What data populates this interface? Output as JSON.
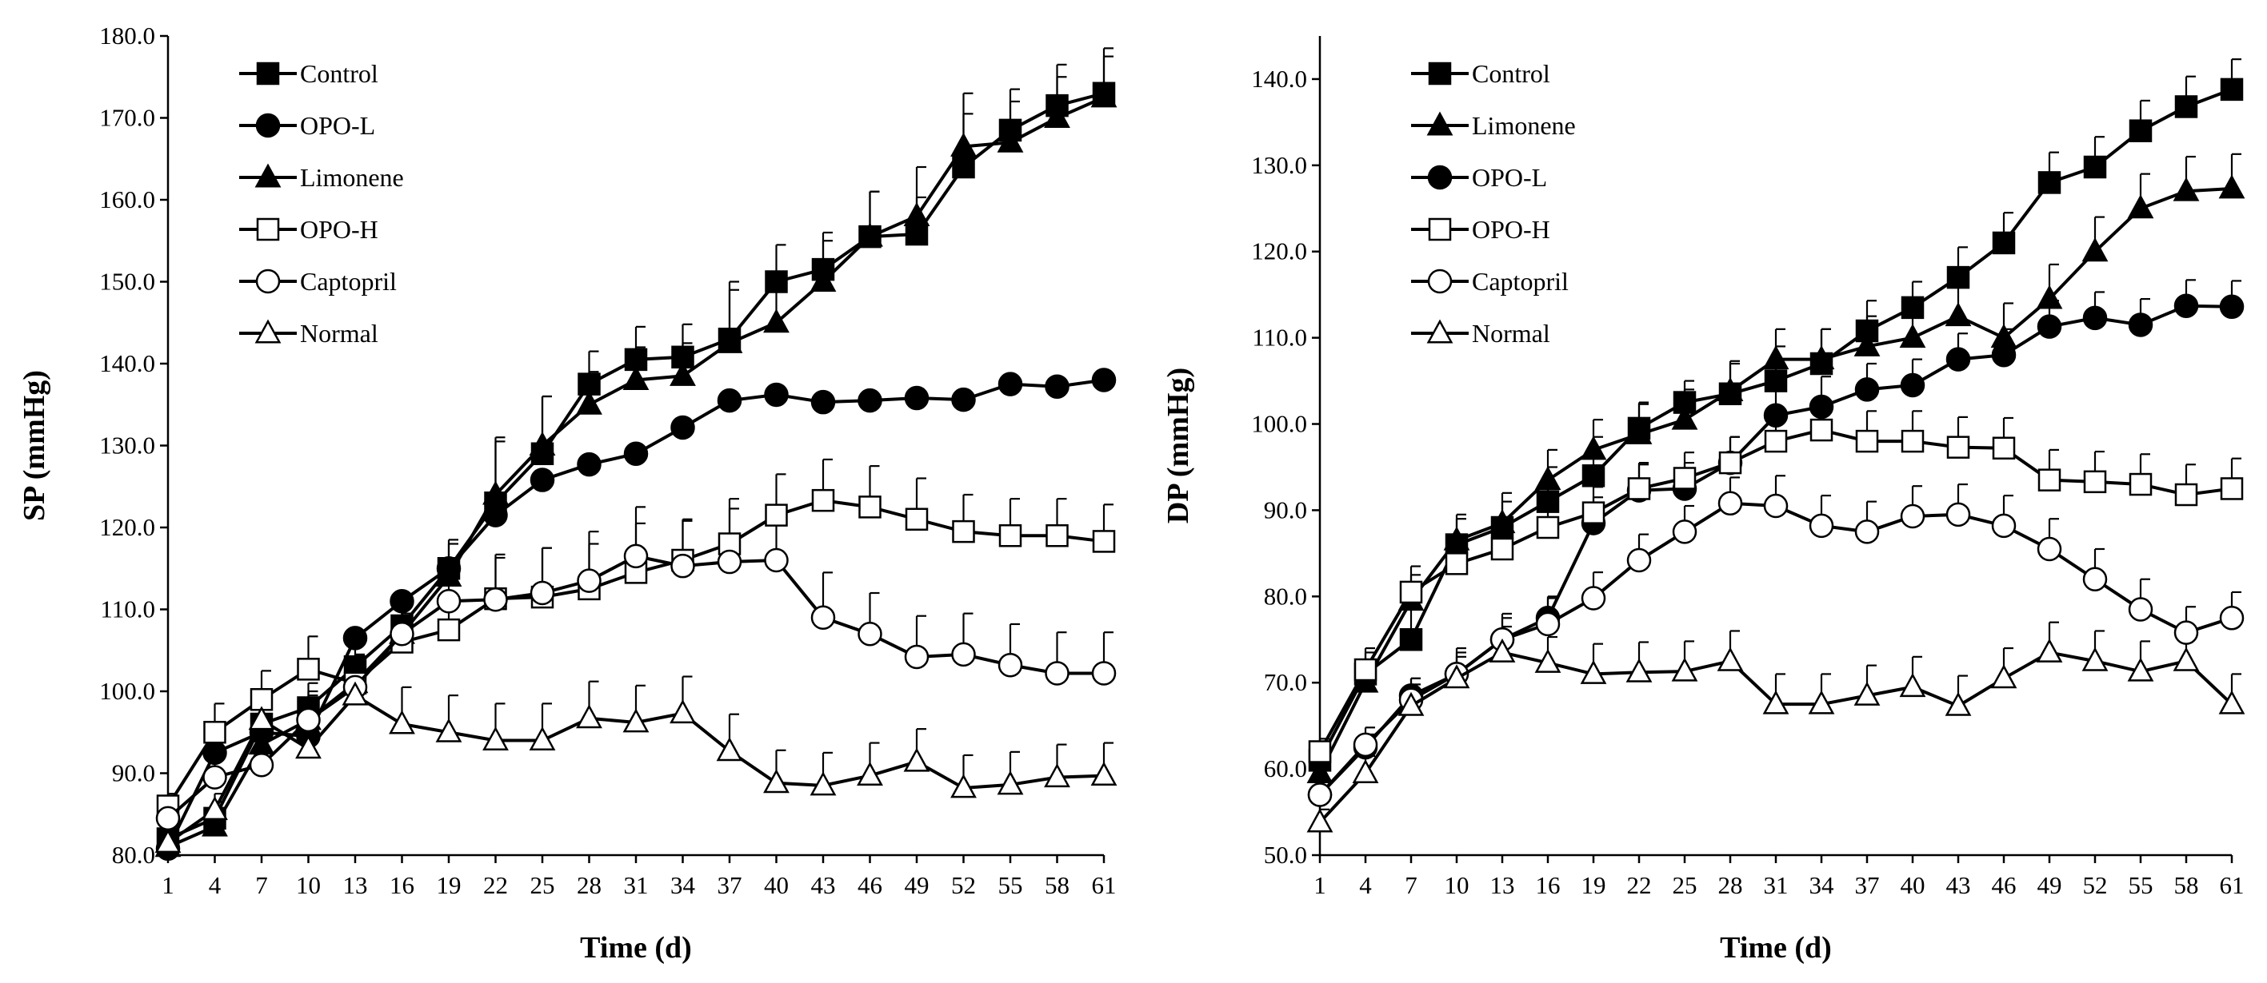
{
  "chart_data": [
    {
      "type": "line",
      "title": "",
      "xlabel": "Time (d)",
      "ylabel": "SP (mmHg)",
      "ylim": [
        80,
        180
      ],
      "yticks": [
        "80.0",
        "90.0",
        "100.0",
        "110.0",
        "120.0",
        "130.0",
        "140.0",
        "150.0",
        "160.0",
        "170.0",
        "180.0"
      ],
      "x": [
        1,
        4,
        7,
        10,
        13,
        16,
        19,
        22,
        25,
        28,
        31,
        34,
        37,
        40,
        43,
        46,
        49,
        52,
        55,
        58,
        61
      ],
      "grid": false,
      "legend_position": "top-left",
      "series": [
        {
          "name": "Control",
          "marker": "square-filled",
          "values": [
            82,
            84.5,
            96,
            98,
            103,
            108,
            115,
            123,
            129,
            137.5,
            140.5,
            140.8,
            143,
            150,
            151.5,
            155.5,
            155.8,
            164,
            168.5,
            171.5,
            173
          ],
          "errors": [
            1.5,
            2,
            4,
            3,
            3.5,
            3.5,
            3.5,
            8,
            7,
            4,
            4,
            4,
            7,
            4.5,
            4.5,
            5.5,
            4.5,
            6.5,
            5,
            5,
            5.5
          ]
        },
        {
          "name": "OPO-L",
          "marker": "circle-filled",
          "values": [
            80.8,
            92.5,
            95,
            94.5,
            106.5,
            111,
            115,
            121.5,
            125.8,
            127.7,
            129,
            132.2,
            135.5,
            136.2,
            135.3,
            135.5,
            135.8,
            135.6,
            137.5,
            137.2,
            138
          ]
        },
        {
          "name": "Limonene",
          "marker": "triangle-filled",
          "values": [
            81,
            83.5,
            93.5,
            96.5,
            101,
            107,
            114,
            124,
            130,
            135,
            138,
            138.5,
            142.5,
            145,
            150,
            155.5,
            158,
            166.5,
            167,
            170,
            172.5
          ],
          "errors": [
            1,
            1.5,
            3,
            3.5,
            3,
            4,
            4,
            6.5,
            6,
            4,
            4,
            4,
            6.5,
            5,
            5,
            5.5,
            6,
            6.5,
            5,
            5,
            5
          ]
        },
        {
          "name": "OPO-H",
          "marker": "square-open",
          "values": [
            86,
            95,
            99,
            102.7,
            101,
            106,
            107.5,
            111.3,
            111.5,
            112.5,
            114.5,
            116,
            118,
            121.5,
            123.3,
            122.5,
            121,
            119.5,
            119,
            119,
            118.3
          ],
          "errors": [
            1.5,
            3.5,
            3.5,
            4,
            3.5,
            3.5,
            4,
            5,
            6,
            5.5,
            6,
            5,
            5.5,
            5,
            5,
            5,
            5,
            4.5,
            4.5,
            4.5,
            4.5
          ]
        },
        {
          "name": "Captopril",
          "marker": "circle-open",
          "values": [
            84.5,
            89.5,
            91,
            96.5,
            100.5,
            107,
            111,
            111.2,
            112,
            113.5,
            116.5,
            115.3,
            115.8,
            116,
            109,
            107,
            104.2,
            104.5,
            103.2,
            102.2,
            102.2
          ],
          "errors": [
            1.5,
            2.5,
            4,
            3,
            3,
            3.5,
            4,
            5.5,
            5.5,
            6,
            6,
            5.5,
            6.5,
            6.5,
            5.5,
            5,
            5,
            5,
            5,
            5,
            5
          ]
        },
        {
          "name": "Normal",
          "marker": "triangle-open",
          "values": [
            81.5,
            85.5,
            96.5,
            93,
            99.5,
            96,
            95,
            94,
            94,
            96.7,
            96.2,
            97.3,
            92.7,
            88.8,
            88.5,
            89.7,
            91.4,
            88.2,
            88.6,
            89.5,
            89.7
          ],
          "errors": [
            1.5,
            2,
            3.5,
            3.5,
            3.5,
            4.5,
            4.5,
            4.5,
            4.5,
            4.5,
            4.5,
            4.5,
            4.5,
            4,
            4,
            4,
            4,
            4,
            4,
            4,
            4
          ]
        }
      ]
    },
    {
      "type": "line",
      "title": "",
      "xlabel": "Time (d)",
      "ylabel": "DP (mmHg)",
      "ylim": [
        50,
        145
      ],
      "yticks": [
        "50.0",
        "60.0",
        "70.0",
        "80.0",
        "90.0",
        "100.0",
        "110.0",
        "120.0",
        "130.0",
        "140.0"
      ],
      "x": [
        1,
        4,
        7,
        10,
        13,
        16,
        19,
        22,
        25,
        28,
        31,
        34,
        37,
        40,
        43,
        46,
        49,
        52,
        55,
        58,
        61
      ],
      "grid": false,
      "legend_position": "top-left",
      "series": [
        {
          "name": "Control",
          "marker": "square-filled",
          "values": [
            61,
            71,
            75,
            86,
            88,
            91,
            94,
            99.5,
            102.5,
            103.5,
            105,
            107,
            110.8,
            113.5,
            117,
            121,
            128,
            129.8,
            134,
            136.8,
            138.8
          ],
          "errors": [
            1.5,
            2.5,
            3.5,
            3,
            3,
            4,
            4.5,
            3,
            2.5,
            3.5,
            4,
            4,
            3.5,
            3,
            3.5,
            3.5,
            3.5,
            3.5,
            3.5,
            3.5,
            3.5
          ]
        },
        {
          "name": "Limonene",
          "marker": "triangle-filled",
          "values": [
            59.5,
            70,
            79.5,
            86.5,
            88.5,
            93.5,
            97,
            98.8,
            100.5,
            103.8,
            107.5,
            107.5,
            109,
            110,
            112.5,
            110,
            114.5,
            120,
            125,
            127,
            127.3
          ],
          "errors": [
            1.5,
            2.5,
            3,
            3,
            3.5,
            3.5,
            3.5,
            3.5,
            3.5,
            3.5,
            3.5,
            3.5,
            3.5,
            3.5,
            3.5,
            4,
            4,
            4,
            4,
            4,
            4
          ]
        },
        {
          "name": "OPO-L",
          "marker": "circle-filled",
          "values": [
            57,
            62.5,
            68.5,
            71,
            75,
            77.5,
            88.5,
            92.3,
            92.5,
            95.5,
            101,
            102,
            104,
            104.5,
            107.5,
            108,
            111.3,
            112.3,
            111.5,
            113.7,
            113.6
          ],
          "errors": [
            1,
            1.5,
            2,
            2,
            2.5,
            2.5,
            3,
            3,
            3,
            3,
            3.5,
            3.5,
            3,
            3,
            3,
            3,
            3,
            3,
            3,
            3,
            3
          ]
        },
        {
          "name": "OPO-H",
          "marker": "square-open",
          "values": [
            62,
            71.5,
            80.5,
            83.8,
            85.5,
            88,
            89.7,
            92.5,
            93.7,
            95.5,
            98,
            99.3,
            98,
            98,
            97.3,
            97.2,
            93.5,
            93.3,
            93,
            91.8,
            92.5
          ],
          "errors": [
            1.5,
            2.5,
            3,
            3,
            3,
            3,
            3,
            3,
            3,
            3,
            3,
            3,
            3.5,
            3.5,
            3.5,
            3.5,
            3.5,
            3.5,
            3.5,
            3.5,
            3.5
          ]
        },
        {
          "name": "Captopril",
          "marker": "circle-open",
          "values": [
            57,
            62.8,
            68,
            71,
            75,
            76.8,
            79.8,
            84.2,
            87.5,
            90.8,
            90.5,
            88.2,
            87.5,
            89.3,
            89.5,
            88.2,
            85.5,
            82,
            78.5,
            75.8,
            77.5
          ],
          "errors": [
            1.5,
            2,
            2.5,
            3,
            3,
            3,
            3,
            3,
            3,
            3,
            3.5,
            3.5,
            3.5,
            3.5,
            3.5,
            3.5,
            3.5,
            3.5,
            3.5,
            3,
            3
          ]
        },
        {
          "name": "Normal",
          "marker": "triangle-open",
          "values": [
            53.8,
            59.5,
            67.3,
            70.5,
            73.5,
            72.3,
            71,
            71.2,
            71.3,
            72.5,
            67.5,
            67.5,
            68.5,
            69.5,
            67.3,
            70.5,
            73.5,
            72.5,
            71.3,
            72.5,
            67.5
          ],
          "errors": [
            1.5,
            2,
            2.5,
            3,
            3,
            3,
            3.5,
            3.5,
            3.5,
            3.5,
            3.5,
            3.5,
            3.5,
            3.5,
            3.5,
            3.5,
            3.5,
            3.5,
            3.5,
            3.5,
            3.5
          ]
        }
      ]
    }
  ]
}
